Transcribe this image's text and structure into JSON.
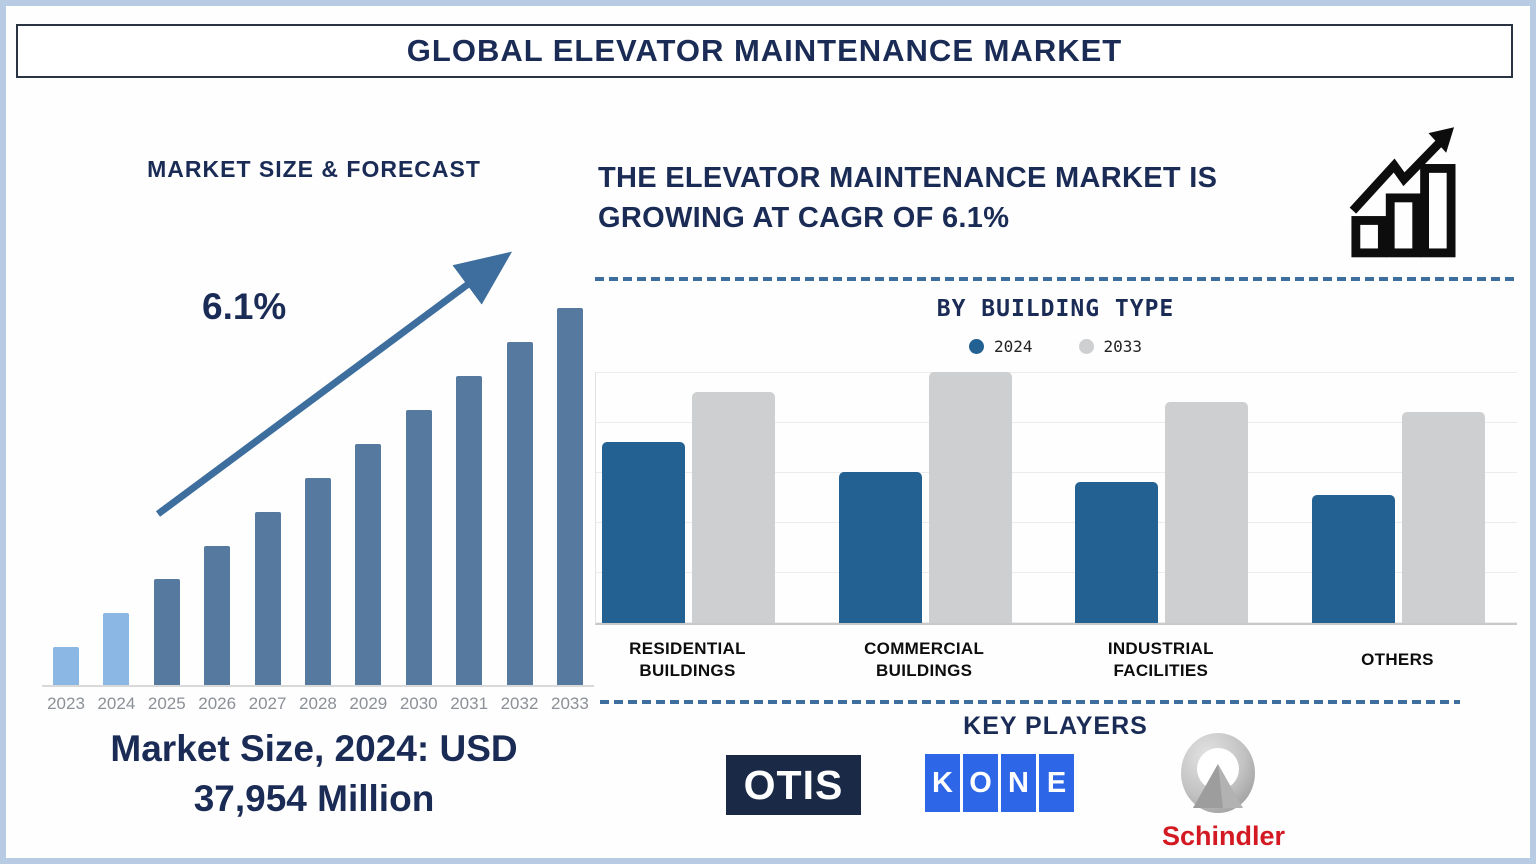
{
  "title": "GLOBAL ELEVATOR MAINTENANCE MARKET",
  "left_panel": {
    "heading": "MARKET SIZE & FORECAST",
    "growth_label": "6.1%",
    "caption": {
      "line1": "Market Size, 2024: USD",
      "line2": "37,954 Million"
    }
  },
  "right_panel": {
    "headline": {
      "line1": "THE ELEVATOR MAINTENANCE MARKET IS",
      "line2": "GROWING AT CAGR OF 6.1%"
    },
    "building_section": {
      "heading": "BY BUILDING TYPE"
    },
    "key_players": {
      "heading": "KEY PLAYERS",
      "otis": {
        "name": "OTIS"
      },
      "kone": {
        "name": "KONE",
        "letters": [
          "K",
          "O",
          "N",
          "E"
        ]
      },
      "schindler": {
        "name": "Schindler"
      }
    }
  },
  "icons": {
    "growth_chart": "bar-chart-with-rising-arrow",
    "left_annotation": "rising-arrow"
  },
  "chart_data": [
    {
      "id": "market_size_forecast",
      "type": "bar",
      "title": "MARKET SIZE & FORECAST",
      "categories": [
        "2023",
        "2024",
        "2025",
        "2026",
        "2027",
        "2028",
        "2029",
        "2030",
        "2031",
        "2032",
        "2033"
      ],
      "values_relative_pct_of_max": [
        10,
        19,
        28,
        37,
        46,
        55,
        64,
        73,
        82,
        91,
        100
      ],
      "known_values": {
        "2024_usd_million": 37954
      },
      "cagr_pct": 6.1,
      "bar_colors": [
        "#8ab7e4",
        "#8ab7e4",
        "#567a9f",
        "#567a9f",
        "#567a9f",
        "#567a9f",
        "#567a9f",
        "#567a9f",
        "#567a9f",
        "#567a9f",
        "#567a9f"
      ],
      "annotation": {
        "text": "6.1%",
        "shape": "rising-arrow"
      },
      "axis": {
        "x_labels_shown": true,
        "y_axis_shown": false
      },
      "grid": "off"
    },
    {
      "id": "by_building_type",
      "type": "grouped-bar",
      "title": "BY BUILDING TYPE",
      "categories": [
        [
          "RESIDENTIAL",
          "BUILDINGS"
        ],
        [
          "COMMERCIAL",
          "BUILDINGS"
        ],
        [
          "INDUSTRIAL",
          "FACILITIES"
        ],
        [
          "OTHERS"
        ]
      ],
      "series": [
        {
          "name": "2024",
          "color": "#236192",
          "values": [
            72,
            60,
            56,
            51
          ]
        },
        {
          "name": "2033",
          "color": "#cdcfd1",
          "values": [
            92,
            100,
            88,
            84
          ]
        }
      ],
      "ylim": [
        0,
        100
      ],
      "value_scale": "relative index (axis unlabeled)",
      "legend_position": "top",
      "grid": "horizontal"
    }
  ],
  "colors": {
    "navy_text": "#1a2b55",
    "steel_blue_accent": "#3d6e9e",
    "frame_border": "#b7cbe3",
    "title_box_border": "#2a3342",
    "forecast_light_bar": "#8ab7e4",
    "forecast_dark_bar": "#567a9f",
    "building_2024_blue": "#236192",
    "building_2033_gray": "#cdcfd1",
    "gridline_gray": "#ececec",
    "axis_label_gray": "#8b9097",
    "category_label_black": "#0d0d0d",
    "otis_bg": "#192946",
    "kone_blue": "#2e66e8",
    "schindler_red": "#d31a22",
    "icon_black": "#0d0d0d"
  }
}
